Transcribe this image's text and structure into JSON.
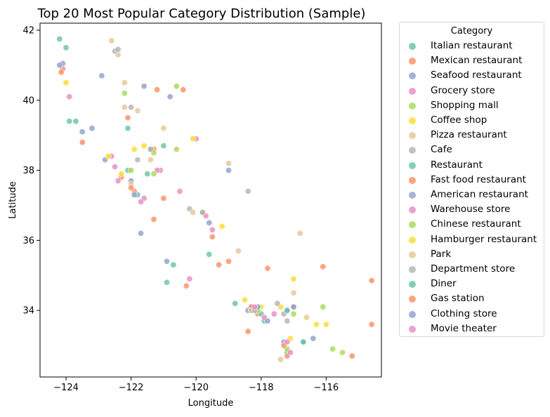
{
  "chart_data": {
    "type": "scatter",
    "title": "Top 20 Most Popular Category Distribution (Sample)",
    "xlabel": "Longitude",
    "ylabel": "Latitude",
    "xlim": [
      -124.8,
      -114.3
    ],
    "ylim": [
      32.1,
      42.2
    ],
    "xticks": [
      -124,
      -122,
      -120,
      -118,
      -116
    ],
    "yticks": [
      34,
      36,
      38,
      40,
      42
    ],
    "xtick_labels": [
      "−124",
      "−122",
      "−120",
      "−118",
      "−116"
    ],
    "ytick_labels": [
      "34",
      "36",
      "38",
      "40",
      "42"
    ],
    "grid": false,
    "legend_title": "Category",
    "legend_placement": "outside-right",
    "series": [
      {
        "name": "Italian restaurant",
        "color": "#66c2a5",
        "points": [
          [
            -124.2,
            41.75
          ],
          [
            -124.0,
            41.5
          ],
          [
            -122.1,
            38.0
          ],
          [
            -121.4,
            38.6
          ],
          [
            -119.8,
            36.8
          ],
          [
            -118.3,
            34.1
          ],
          [
            -117.2,
            32.8
          ],
          [
            -117.9,
            33.7
          ],
          [
            -121.8,
            37.3
          ],
          [
            -120.7,
            35.3
          ]
        ]
      },
      {
        "name": "Mexican restaurant",
        "color": "#fc8d62",
        "points": [
          [
            -124.1,
            40.9
          ],
          [
            -124.15,
            40.8
          ],
          [
            -122.3,
            37.8
          ],
          [
            -121.9,
            37.4
          ],
          [
            -120.4,
            40.3
          ],
          [
            -119.0,
            35.4
          ],
          [
            -118.2,
            34.0
          ],
          [
            -117.2,
            32.7
          ],
          [
            -116.1,
            35.25
          ],
          [
            -114.6,
            34.85
          ],
          [
            -117.0,
            34.1
          ],
          [
            -121.3,
            38.6
          ],
          [
            -118.1,
            33.9
          ]
        ]
      },
      {
        "name": "Seafood restaurant",
        "color": "#8da0cb",
        "points": [
          [
            -124.1,
            41.05
          ],
          [
            -122.9,
            40.7
          ],
          [
            -121.6,
            40.4
          ],
          [
            -120.8,
            40.1
          ],
          [
            -122.0,
            37.7
          ],
          [
            -119.6,
            36.5
          ],
          [
            -118.4,
            34.0
          ],
          [
            -117.3,
            33.1
          ],
          [
            -116.4,
            33.2
          ],
          [
            -123.5,
            39.1
          ]
        ]
      },
      {
        "name": "Grocery store",
        "color": "#e78ac3",
        "points": [
          [
            -123.9,
            40.1
          ],
          [
            -122.4,
            37.7
          ],
          [
            -121.6,
            37.2
          ],
          [
            -120.0,
            38.9
          ],
          [
            -118.3,
            34.1
          ],
          [
            -117.6,
            33.9
          ],
          [
            -121.1,
            38.0
          ],
          [
            -119.5,
            36.3
          ]
        ]
      },
      {
        "name": "Shopping mall",
        "color": "#a6d854",
        "points": [
          [
            -122.2,
            40.2
          ],
          [
            -120.6,
            40.4
          ],
          [
            -121.3,
            38.5
          ],
          [
            -119.8,
            36.8
          ],
          [
            -118.1,
            34.0
          ],
          [
            -116.1,
            34.1
          ],
          [
            -115.5,
            32.8
          ],
          [
            -117.2,
            32.9
          ]
        ]
      },
      {
        "name": "Coffee shop",
        "color": "#ffd92f",
        "points": [
          [
            -124.0,
            40.5
          ],
          [
            -122.3,
            37.9
          ],
          [
            -121.9,
            38.6
          ],
          [
            -118.5,
            34.3
          ],
          [
            -117.4,
            34.1
          ],
          [
            -116.3,
            33.6
          ],
          [
            -117.0,
            34.9
          ],
          [
            -120.1,
            38.9
          ]
        ]
      },
      {
        "name": "Pizza restaurant",
        "color": "#e5c494",
        "points": [
          [
            -122.6,
            41.7
          ],
          [
            -122.4,
            41.3
          ],
          [
            -122.2,
            40.5
          ],
          [
            -121.8,
            39.7
          ],
          [
            -121.0,
            39.2
          ],
          [
            -119.0,
            38.2
          ],
          [
            -118.7,
            35.7
          ],
          [
            -116.8,
            36.2
          ],
          [
            -117.0,
            34.5
          ],
          [
            -122.0,
            37.6
          ]
        ]
      },
      {
        "name": "Cafe",
        "color": "#b3b3b3",
        "points": [
          [
            -122.5,
            41.4
          ],
          [
            -122.0,
            39.8
          ],
          [
            -121.4,
            38.6
          ],
          [
            -118.4,
            37.4
          ],
          [
            -117.5,
            34.2
          ],
          [
            -117.2,
            33.7
          ],
          [
            -120.2,
            36.9
          ]
        ]
      },
      {
        "name": "Restaurant",
        "color": "#66c2a5",
        "points": [
          [
            -123.9,
            39.4
          ],
          [
            -122.1,
            39.2
          ],
          [
            -121.0,
            38.7
          ],
          [
            -119.6,
            35.6
          ],
          [
            -118.0,
            33.9
          ],
          [
            -116.7,
            33.1
          ],
          [
            -118.8,
            34.2
          ]
        ]
      },
      {
        "name": "Fast food restaurant",
        "color": "#fc8d62",
        "points": [
          [
            -121.2,
            40.3
          ],
          [
            -123.5,
            38.8
          ],
          [
            -122.0,
            37.5
          ],
          [
            -121.0,
            37.2
          ],
          [
            -119.5,
            36.1
          ],
          [
            -118.3,
            34.1
          ],
          [
            -117.8,
            35.2
          ],
          [
            -115.2,
            32.7
          ],
          [
            -114.6,
            33.6
          ]
        ]
      },
      {
        "name": "American restaurant",
        "color": "#8da0cb",
        "points": [
          [
            -123.2,
            39.2
          ],
          [
            -122.8,
            38.3
          ],
          [
            -121.7,
            36.2
          ],
          [
            -119.0,
            38.0
          ],
          [
            -118.3,
            34.0
          ],
          [
            -117.2,
            34.0
          ],
          [
            -120.9,
            35.4
          ]
        ]
      },
      {
        "name": "Warehouse store",
        "color": "#e78ac3",
        "points": [
          [
            -122.6,
            38.4
          ],
          [
            -121.2,
            38.0
          ],
          [
            -119.7,
            36.7
          ],
          [
            -117.9,
            33.8
          ],
          [
            -117.1,
            32.8
          ],
          [
            -120.2,
            34.9
          ]
        ]
      },
      {
        "name": "Chinese restaurant",
        "color": "#a6d854",
        "points": [
          [
            -122.0,
            38.0
          ],
          [
            -121.3,
            37.9
          ],
          [
            -118.1,
            34.0
          ],
          [
            -117.0,
            33.9
          ],
          [
            -115.8,
            32.9
          ],
          [
            -120.6,
            38.6
          ]
        ]
      },
      {
        "name": "Hamburger restaurant",
        "color": "#ffd92f",
        "points": [
          [
            -122.7,
            38.4
          ],
          [
            -121.6,
            38.7
          ],
          [
            -119.2,
            36.4
          ],
          [
            -118.0,
            34.1
          ],
          [
            -116.0,
            33.6
          ],
          [
            -117.1,
            33.2
          ]
        ]
      },
      {
        "name": "Park",
        "color": "#e5c494",
        "points": [
          [
            -122.2,
            39.8
          ],
          [
            -121.4,
            38.3
          ],
          [
            -118.3,
            34.0
          ],
          [
            -116.6,
            33.8
          ],
          [
            -120.1,
            36.8
          ],
          [
            -117.4,
            32.6
          ]
        ]
      },
      {
        "name": "Department store",
        "color": "#b3b3b3",
        "points": [
          [
            -122.4,
            41.45
          ],
          [
            -121.8,
            38.3
          ],
          [
            -118.2,
            34.0
          ],
          [
            -117.3,
            33.9
          ],
          [
            -119.8,
            36.8
          ]
        ]
      },
      {
        "name": "Diner",
        "color": "#66c2a5",
        "points": [
          [
            -123.7,
            39.4
          ],
          [
            -121.5,
            37.9
          ],
          [
            -120.9,
            34.8
          ],
          [
            -117.2,
            34.0
          ],
          [
            -116.7,
            33.1
          ]
        ]
      },
      {
        "name": "Gas station",
        "color": "#fc8d62",
        "points": [
          [
            -122.1,
            39.5
          ],
          [
            -121.3,
            36.6
          ],
          [
            -119.3,
            35.3
          ],
          [
            -117.3,
            33.0
          ],
          [
            -118.4,
            33.4
          ],
          [
            -120.3,
            34.7
          ]
        ]
      },
      {
        "name": "Clothing store",
        "color": "#8da0cb",
        "points": [
          [
            -124.2,
            41.0
          ],
          [
            -121.9,
            37.3
          ],
          [
            -118.1,
            34.1
          ],
          [
            -117.8,
            33.7
          ],
          [
            -117.0,
            34.1
          ]
        ]
      },
      {
        "name": "Movie theater",
        "color": "#e78ac3",
        "points": [
          [
            -122.5,
            38.1
          ],
          [
            -121.7,
            37.1
          ],
          [
            -118.2,
            34.1
          ],
          [
            -117.2,
            33.1
          ],
          [
            -120.5,
            37.4
          ]
        ]
      }
    ]
  }
}
